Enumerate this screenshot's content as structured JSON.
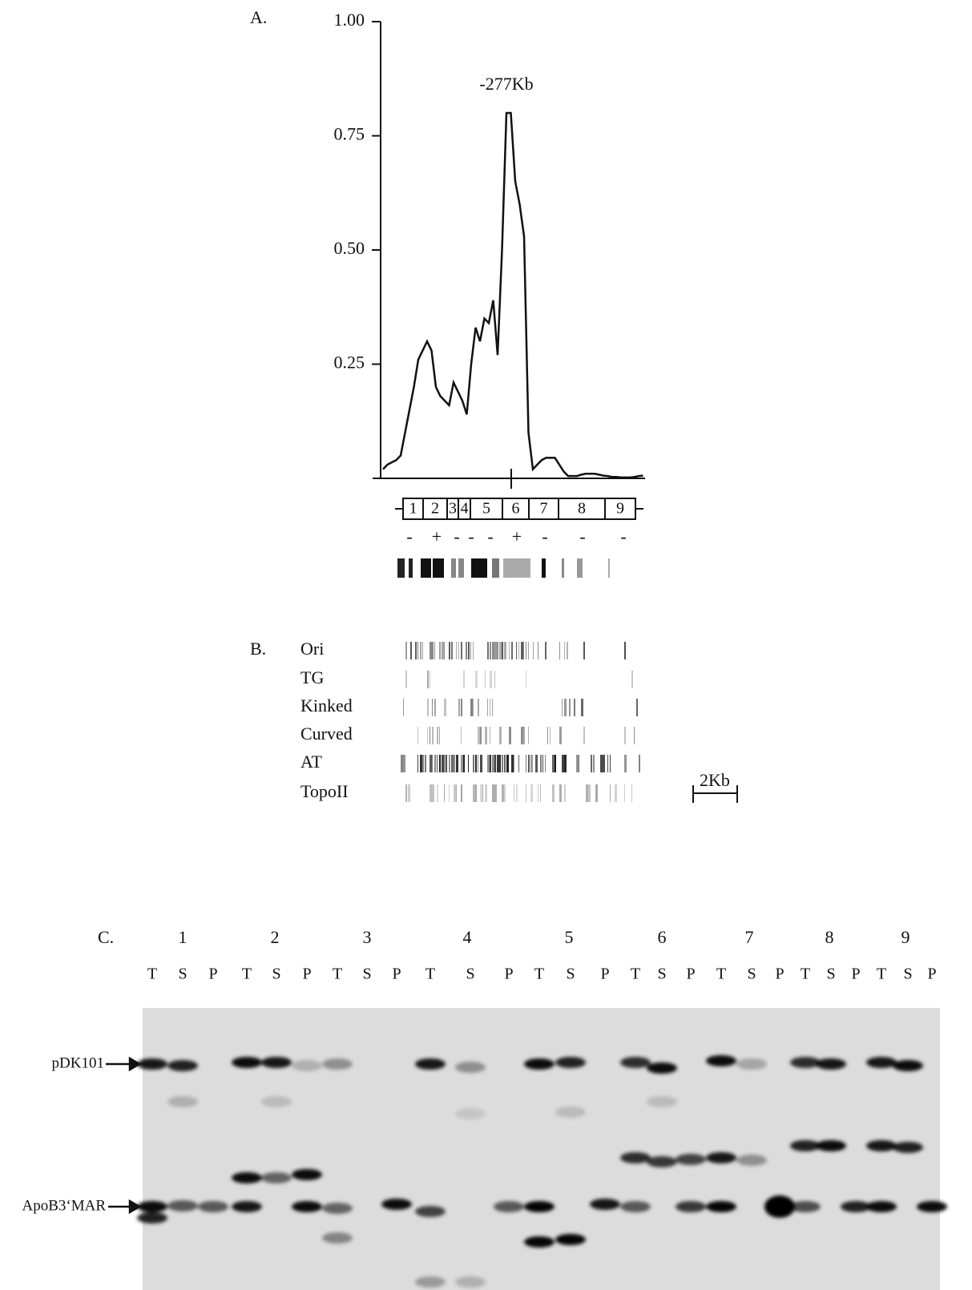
{
  "chart_data": {
    "type": "line",
    "panel_label": "A.",
    "annotation": "-277Kb",
    "values": [
      0.02,
      0.03,
      0.035,
      0.04,
      0.05,
      0.1,
      0.15,
      0.2,
      0.26,
      0.28,
      0.3,
      0.28,
      0.2,
      0.18,
      0.17,
      0.16,
      0.21,
      0.19,
      0.17,
      0.14,
      0.25,
      0.33,
      0.3,
      0.35,
      0.34,
      0.39,
      0.27,
      0.5,
      0.8,
      0.8,
      0.65,
      0.6,
      0.53,
      0.1,
      0.02,
      0.03,
      0.04,
      0.045,
      0.045,
      0.045,
      0.03,
      0.015,
      0.005,
      0.005,
      0.005,
      0.008,
      0.01,
      0.01,
      0.01,
      0.008,
      0.006,
      0.005,
      0.003,
      0.003,
      0.002,
      0.002,
      0.002,
      0.003,
      0.005,
      0.006
    ],
    "color": "#111111",
    "ylim": [
      0,
      1
    ],
    "yticks": [
      0.25,
      {
        "value": 0.5,
        "label": "0.50"
      },
      0.75,
      {
        "value": 1,
        "label": "1.00"
      }
    ],
    "fragments": [
      "1",
      "2",
      "3",
      "4",
      "5",
      "6",
      "7",
      "8",
      "9"
    ],
    "signs": [
      "-",
      "+",
      "-",
      "-",
      "-",
      "+",
      "-",
      "-",
      "-"
    ]
  },
  "panel_b": {
    "label": "B.",
    "tracks": [
      "Ori",
      "TG",
      "Kinked",
      "Curved",
      "AT",
      "TopoII"
    ],
    "scale": "2Kb"
  },
  "panel_c": {
    "label": "C.",
    "lanes": [
      "1",
      "2",
      "3",
      "4",
      "5",
      "6",
      "7",
      "8",
      "9"
    ],
    "fractions": [
      "T",
      "S",
      "P",
      "T",
      "S",
      "P",
      "T",
      "S",
      "P",
      "T",
      "S",
      "P",
      "T",
      "S",
      "P",
      "T",
      "S",
      "P",
      "T",
      "S",
      "P",
      "T",
      "S",
      "P",
      "T",
      "S",
      "P"
    ],
    "bands": [
      "pDK101",
      "ApoB3‘MAR"
    ]
  }
}
